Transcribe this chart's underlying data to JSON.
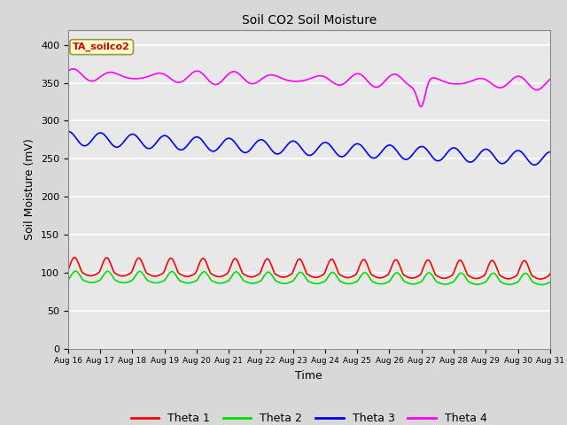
{
  "title": "Soil CO2 Soil Moisture",
  "xlabel": "Time",
  "ylabel": "Soil Moisture (mV)",
  "ylim": [
    0,
    420
  ],
  "yticks": [
    0,
    50,
    100,
    150,
    200,
    250,
    300,
    350,
    400
  ],
  "x_labels": [
    "Aug 16",
    "Aug 17",
    "Aug 18",
    "Aug 19",
    "Aug 20",
    "Aug 21",
    "Aug 22",
    "Aug 23",
    "Aug 24",
    "Aug 25",
    "Aug 26",
    "Aug 27",
    "Aug 28",
    "Aug 29",
    "Aug 30",
    "Aug 31"
  ],
  "legend_labels": [
    "Theta 1",
    "Theta 2",
    "Theta 3",
    "Theta 4"
  ],
  "legend_colors": [
    "#ff0000",
    "#00dd00",
    "#0000ff",
    "#ff00ff"
  ],
  "annotation_text": "TA_soilco2",
  "annotation_color": "#cc0000",
  "annotation_bg": "#ffffcc",
  "bg_color": "#e8e8e8",
  "grid_color": "#ffffff",
  "line_width": 1.2,
  "fig_bg": "#d8d8d8"
}
